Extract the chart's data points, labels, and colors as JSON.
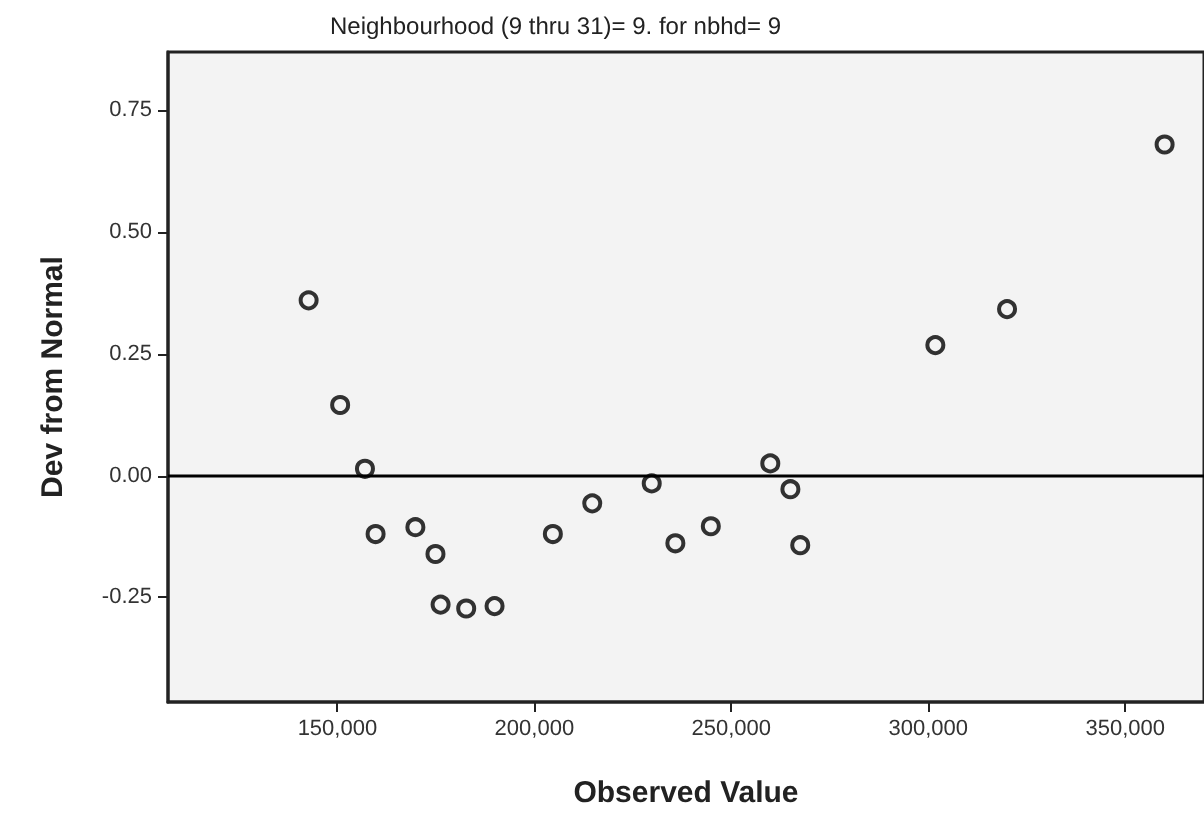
{
  "chart_data": {
    "type": "scatter",
    "title": "Neighbourhood (9 thru 31)= 9. for nbhd= 9",
    "xlabel": "Observed Value",
    "ylabel": "Dev from Normal",
    "x": [
      142700,
      150700,
      157000,
      159700,
      169800,
      174900,
      176200,
      182700,
      189900,
      204700,
      214700,
      229800,
      235800,
      244800,
      259900,
      265000,
      267500,
      301800,
      320000,
      360000
    ],
    "values": [
      0.36,
      0.145,
      0.014,
      -0.12,
      -0.106,
      -0.161,
      -0.265,
      -0.273,
      -0.268,
      -0.12,
      -0.057,
      -0.016,
      -0.139,
      -0.104,
      0.025,
      -0.028,
      -0.143,
      0.268,
      0.342,
      0.68
    ],
    "color": "#000000",
    "marker": "circle",
    "grid": false,
    "xlim": [
      107000,
      370000
    ],
    "xticks": [
      {
        "value": 150000,
        "label": "150,000"
      },
      {
        "value": 200000,
        "label": "200,000"
      },
      {
        "value": 250000,
        "label": "250,000"
      },
      {
        "value": 300000,
        "label": "300,000"
      },
      {
        "value": 350000,
        "label": "350,000"
      }
    ],
    "ylim": [
      -0.465,
      0.87
    ],
    "yticks": [
      {
        "value": -0.25,
        "label": "-0.25"
      },
      {
        "value": 0,
        "label": "0.00"
      },
      {
        "value": 0.25,
        "label": "0.25"
      },
      {
        "value": 0.5,
        "label": "0.50"
      },
      {
        "value": 0.75,
        "label": "0.75"
      }
    ],
    "ref_lines": [
      {
        "axis": "y",
        "value": 0,
        "color": "#000000"
      }
    ]
  }
}
